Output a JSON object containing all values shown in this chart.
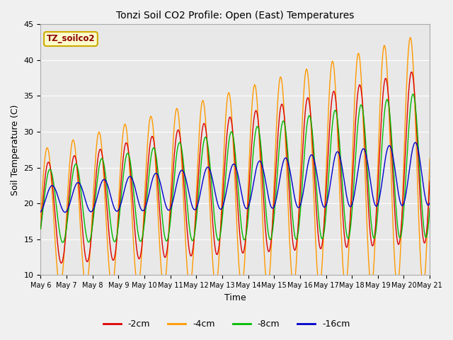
{
  "title": "Tonzi Soil CO2 Profile: Open (East) Temperatures",
  "xlabel": "Time",
  "ylabel": "Soil Temperature (C)",
  "ylim": [
    10,
    45
  ],
  "background_color": "#f0f0f0",
  "plot_bg_color": "#e8e8e8",
  "grid_color": "#ffffff",
  "colors": {
    "2cm": "#dd0000",
    "4cm": "#ff9900",
    "8cm": "#00bb00",
    "16cm": "#0000cc"
  },
  "x_tick_labels": [
    "May 6",
    "May 7",
    "May 8",
    "May 9",
    "May 10",
    "May 11",
    "May 12",
    "May 13",
    "May 14",
    "May 15",
    "May 16",
    "May 17",
    "May 18",
    "May 19",
    "May 20",
    "May 21"
  ],
  "annotation_text": "TZ_soilco2",
  "annotation_color": "#8b0000",
  "annotation_bg": "#ffffcc",
  "annotation_border": "#ccaa00",
  "days": 15,
  "points_per_day": 48,
  "trend_2cm_base": 18.5,
  "trend_2cm_slope": 0.55,
  "trend_4cm_base": 18.0,
  "trend_4cm_slope": 0.55,
  "trend_8cm_base": 19.5,
  "trend_8cm_slope": 0.4,
  "trend_16cm_base": 20.5,
  "trend_16cm_slope": 0.25,
  "amp_2cm_base": 7.0,
  "amp_2cm_slope": 0.35,
  "amp_4cm_base": 9.5,
  "amp_4cm_slope": 0.55,
  "amp_8cm_base": 5.0,
  "amp_8cm_slope": 0.35,
  "amp_16cm_base": 1.8,
  "amp_16cm_slope": 0.18,
  "phase_2cm": 0.3,
  "phase_4cm": 0.0,
  "phase_8cm": 0.65,
  "phase_16cm": 1.2
}
